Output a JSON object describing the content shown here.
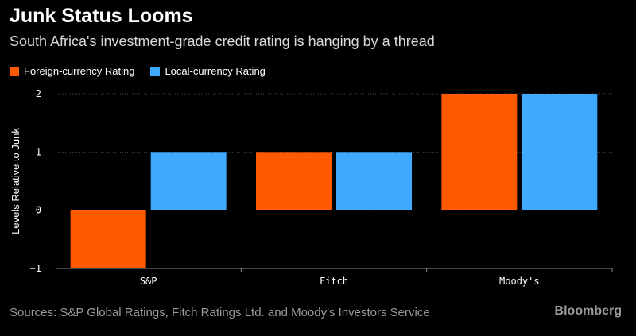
{
  "header": {
    "title": "Junk Status Looms",
    "subtitle": "South Africa's investment-grade credit rating is hanging by a thread"
  },
  "footer": {
    "source": "Sources: S&P Global Ratings, Fitch Ratings Ltd. and Moody's Investors Service",
    "brand": "Bloomberg"
  },
  "colors": {
    "foreign": "#ff5a00",
    "local": "#3fa9ff"
  },
  "chart_data": {
    "type": "bar",
    "categories": [
      "S&P",
      "Fitch",
      "Moody's"
    ],
    "series": [
      {
        "name": "Foreign-currency Rating",
        "values": [
          -1,
          1,
          2
        ]
      },
      {
        "name": "Local-currency Rating",
        "values": [
          1,
          1,
          2
        ]
      }
    ],
    "xlabel": "",
    "ylabel": "Levels Relative to Junk",
    "ylim": [
      -1,
      2
    ],
    "yticks": [
      -1,
      0,
      1,
      2
    ],
    "legend_position": "top-left",
    "grid": true
  }
}
